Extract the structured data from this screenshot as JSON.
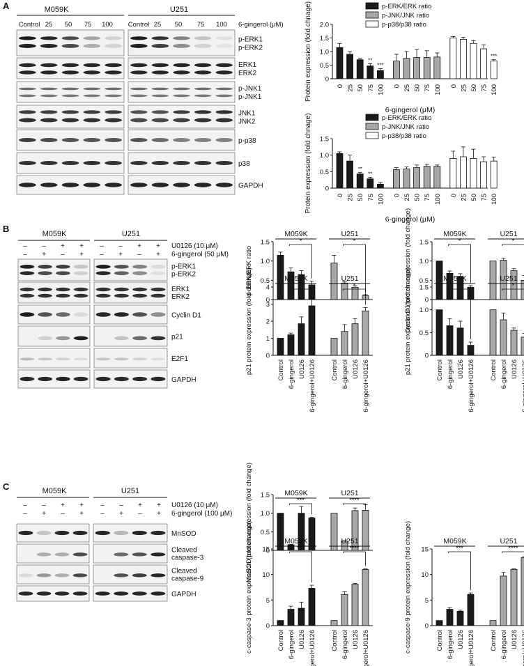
{
  "panelA": {
    "letter": "A",
    "cells": [
      "M059K",
      "U251"
    ],
    "lanes": [
      "Control",
      "25",
      "50",
      "75",
      "100"
    ],
    "dose_label": "6-gingerol (μM)",
    "blot_labels": [
      [
        "p-ERK1",
        "p-ERK2"
      ],
      [
        "ERK1",
        "ERK2"
      ],
      [
        "p-JNK1",
        "p-JNK1"
      ],
      [
        "JNK1",
        "JNK2"
      ],
      [
        "p-p38"
      ],
      [
        "p38"
      ],
      [
        "GAPDH"
      ]
    ]
  },
  "panelB": {
    "letter": "B",
    "cells": [
      "M059K",
      "U251"
    ],
    "treatments": [
      {
        "label": "U0126 (10 μM)",
        "signs": [
          "–",
          "–",
          "+",
          "+"
        ]
      },
      {
        "label": "6-gingerol (50 μM)",
        "signs": [
          "–",
          "+",
          "–",
          "+"
        ]
      }
    ],
    "blot_labels": [
      [
        "p-ERK1",
        "p-ERK2"
      ],
      [
        "ERK1",
        "ERK2"
      ],
      [
        "Cyclin D1"
      ],
      [
        "p21"
      ],
      [
        "E2F1"
      ],
      [
        "GAPDH"
      ]
    ]
  },
  "panelC": {
    "letter": "C",
    "cells": [
      "M059K",
      "U251"
    ],
    "treatments": [
      {
        "label": "U0126 (10 μM)",
        "signs": [
          "–",
          "–",
          "+",
          "+"
        ]
      },
      {
        "label": "6-gingerol (100 μM)",
        "signs": [
          "–",
          "+",
          "–",
          "+"
        ]
      }
    ],
    "blot_labels": [
      [
        "MnSOD"
      ],
      [
        "Cleaved",
        "caspase-3"
      ],
      [
        "Cleaved",
        "caspase-9"
      ],
      [
        "GAPDH"
      ]
    ]
  },
  "colors": {
    "black": "#1a1a1a",
    "gray": "#a8a8a8",
    "white": "#ffffff"
  },
  "chart_data": [
    {
      "type": "bar",
      "panel": "A",
      "ylabel": "Protein expression (fold chnage)",
      "xlabel": "6-gingerol (μM)",
      "ylim": [
        0,
        2.0
      ],
      "yticks": [
        "0",
        "0.5",
        "1.0",
        "1.5",
        "2.0"
      ],
      "groups": [
        "0",
        "25",
        "50",
        "75",
        "100"
      ],
      "legend": [
        "p-ERK/ERK ratio",
        "p-JNK/JNK ratio",
        "p-p38/p38 ratio"
      ],
      "series": [
        {
          "name": "p-ERK/ERK ratio",
          "color": "black",
          "values": [
            1.15,
            0.9,
            0.7,
            0.47,
            0.3
          ],
          "errors": [
            0.15,
            0.1,
            0.05,
            0.08,
            0.07
          ],
          "stars": [
            "",
            "",
            "",
            "**",
            "***"
          ]
        },
        {
          "name": "p-JNK/JNK ratio",
          "color": "gray",
          "values": [
            0.65,
            0.75,
            0.78,
            0.78,
            0.8
          ],
          "errors": [
            0.25,
            0.25,
            0.3,
            0.25,
            0.15
          ],
          "stars": [
            "",
            "",
            "",
            "",
            ""
          ]
        },
        {
          "name": "p-p38/p38 ratio",
          "color": "white",
          "values": [
            1.5,
            1.45,
            1.3,
            1.1,
            0.65
          ],
          "errors": [
            0.05,
            0.08,
            0.1,
            0.15,
            0.05
          ],
          "stars": [
            "",
            "",
            "",
            "",
            "***"
          ]
        }
      ]
    },
    {
      "type": "bar",
      "panel": "A",
      "ylabel": "Protein expression (fold chnage)",
      "xlabel": "6-gingerol (μM)",
      "ylim": [
        0,
        1.5
      ],
      "yticks": [
        "0",
        "0.5",
        "1.0",
        "1.5"
      ],
      "groups": [
        "0",
        "25",
        "50",
        "75",
        "100"
      ],
      "legend": [
        "p-ERK/ERK ratio",
        "p-JNK/JNK ratio",
        "p-p38/p38 ratio"
      ],
      "series": [
        {
          "name": "p-ERK/ERK ratio",
          "color": "black",
          "values": [
            1.05,
            0.82,
            0.43,
            0.28,
            0.12
          ],
          "errors": [
            0.05,
            0.18,
            0.05,
            0.05,
            0.05
          ],
          "stars": [
            "",
            "",
            "**",
            "**",
            ""
          ]
        },
        {
          "name": "p-JNK/JNK ratio",
          "color": "gray",
          "values": [
            0.56,
            0.58,
            0.62,
            0.66,
            0.66
          ],
          "errors": [
            0.06,
            0.06,
            0.08,
            0.06,
            0.04
          ],
          "stars": [
            "",
            "",
            "",
            "",
            ""
          ]
        },
        {
          "name": "p-p38/p38 ratio",
          "color": "white",
          "values": [
            0.9,
            0.95,
            0.9,
            0.8,
            0.82
          ],
          "errors": [
            0.22,
            0.3,
            0.28,
            0.15,
            0.12
          ],
          "stars": [
            "",
            "",
            "",
            "",
            ""
          ]
        }
      ]
    },
    {
      "type": "bar",
      "panel": "B",
      "ylabel": "p-ERK/ERK ratio",
      "ylim": [
        0,
        1.5
      ],
      "yticks": [
        "0",
        "0.5",
        "1.0",
        "1.5"
      ],
      "categories": [
        "Control",
        "6-gingerol",
        "U0126",
        "6-gingerol+U0126"
      ],
      "show_xlabels": false,
      "groups": [
        {
          "name": "M059K",
          "color": "black",
          "values": [
            1.15,
            0.72,
            0.65,
            0.38
          ],
          "errors": [
            0.08,
            0.1,
            0.1,
            0.1
          ],
          "sig": "*"
        },
        {
          "name": "U251",
          "color": "gray",
          "values": [
            0.95,
            0.43,
            0.32,
            0.1
          ],
          "errors": [
            0.2,
            0.03,
            0.04,
            0.03
          ],
          "sig": "*"
        }
      ]
    },
    {
      "type": "bar",
      "panel": "B",
      "ylabel": "Cyclin D1 protein expression (fold change)",
      "ylim": [
        0,
        1.5
      ],
      "yticks": [
        "0",
        "0.5",
        "1.0",
        "1.5"
      ],
      "categories": [
        "Control",
        "6-gingerol",
        "U0126",
        "6-gingerol+U0126"
      ],
      "show_xlabels": false,
      "groups": [
        {
          "name": "M059K",
          "color": "black",
          "values": [
            1.0,
            0.68,
            0.6,
            0.32
          ],
          "errors": [
            0,
            0.06,
            0.07,
            0.04
          ],
          "sig": "*"
        },
        {
          "name": "U251",
          "color": "gray",
          "values": [
            1.0,
            1.02,
            0.75,
            0.5
          ],
          "errors": [
            0,
            0.05,
            0.05,
            0.12
          ],
          "sig": "*"
        }
      ]
    },
    {
      "type": "bar",
      "panel": "B",
      "ylabel": "p21 protein expression (fold change)",
      "ylim": [
        0,
        4
      ],
      "yticks": [
        "0",
        "1",
        "2",
        "3",
        "4"
      ],
      "categories": [
        "Control",
        "6-gingerol",
        "U0126",
        "6-gingerol+U0126"
      ],
      "show_xlabels": true,
      "groups": [
        {
          "name": "M059K",
          "color": "black",
          "values": [
            1.0,
            1.2,
            1.85,
            2.9
          ],
          "errors": [
            0,
            0.1,
            0.4,
            0.5
          ],
          "sig": "*"
        },
        {
          "name": "U251",
          "color": "gray",
          "values": [
            1.0,
            1.4,
            1.85,
            2.6
          ],
          "errors": [
            0,
            0.4,
            0.3,
            0.2
          ],
          "sig": "*"
        }
      ]
    },
    {
      "type": "bar",
      "panel": "B",
      "ylabel": "p21 protein expression (fold change)",
      "ylim": [
        0,
        1.5
      ],
      "yticks": [
        "0",
        "0.5",
        "1.0",
        "1.5"
      ],
      "categories": [
        "Control",
        "6-gingerol",
        "U0126",
        "6-gingerol+U0126"
      ],
      "show_xlabels": true,
      "groups": [
        {
          "name": "M059K",
          "color": "black",
          "values": [
            1.0,
            0.65,
            0.6,
            0.22
          ],
          "errors": [
            0,
            0.15,
            0.15,
            0.07
          ],
          "sig": "*"
        },
        {
          "name": "U251",
          "color": "gray",
          "values": [
            1.0,
            0.78,
            0.55,
            0.4
          ],
          "errors": [
            0,
            0.15,
            0.05,
            0.08
          ],
          "sig": "*"
        }
      ]
    },
    {
      "type": "bar",
      "panel": "C",
      "ylabel": "MnSOD protein expression (fold change)",
      "ylim": [
        0,
        1.5
      ],
      "yticks": [
        "0",
        "0.5",
        "1.0",
        "1.5"
      ],
      "categories": [
        "Control",
        "6-gingerol",
        "U0126",
        "6-gingerol+U0126"
      ],
      "show_xlabels": false,
      "groups": [
        {
          "name": "M059K",
          "color": "black",
          "values": [
            1.0,
            0.15,
            1.0,
            0.87
          ],
          "errors": [
            0,
            0.01,
            0.18,
            0.02
          ],
          "sig": "***"
        },
        {
          "name": "U251",
          "color": "gray",
          "values": [
            1.0,
            0.25,
            1.07,
            1.08
          ],
          "errors": [
            0,
            0.01,
            0.07,
            0.15
          ],
          "sig": "****"
        }
      ]
    },
    {
      "type": "bar",
      "panel": "C",
      "ylabel": "c-caspase-3 protein expression (fold change)",
      "ylim": [
        0,
        15
      ],
      "yticks": [
        "0",
        "5",
        "10",
        "15"
      ],
      "categories": [
        "Control",
        "6-gingerol",
        "U0126",
        "6-gingerol+U0126"
      ],
      "show_xlabels": true,
      "groups": [
        {
          "name": "M059K",
          "color": "black",
          "values": [
            1.0,
            3.2,
            3.4,
            7.3
          ],
          "errors": [
            0,
            0.6,
            1.2,
            0.6
          ],
          "sig": "***"
        },
        {
          "name": "U251",
          "color": "gray",
          "values": [
            1.0,
            6.1,
            8.1,
            11.0
          ],
          "errors": [
            0,
            0.5,
            0.15,
            0.1
          ],
          "sig": "****"
        }
      ]
    },
    {
      "type": "bar",
      "panel": "C",
      "ylabel": "c-caspase-9 protein expression (fold change)",
      "ylim": [
        0,
        15
      ],
      "yticks": [
        "0",
        "5",
        "10",
        "15"
      ],
      "categories": [
        "Control",
        "6-gingerol",
        "U0126",
        "6-gingerol+U0126"
      ],
      "show_xlabels": true,
      "groups": [
        {
          "name": "M059K",
          "color": "black",
          "values": [
            1.0,
            3.2,
            2.8,
            6.1
          ],
          "errors": [
            0,
            0.3,
            0.2,
            0.3
          ],
          "sig": "***"
        },
        {
          "name": "U251",
          "color": "gray",
          "values": [
            1.0,
            9.7,
            11.0,
            13.3
          ],
          "errors": [
            0,
            0.7,
            0.1,
            0.2
          ],
          "sig": "****"
        }
      ]
    }
  ]
}
